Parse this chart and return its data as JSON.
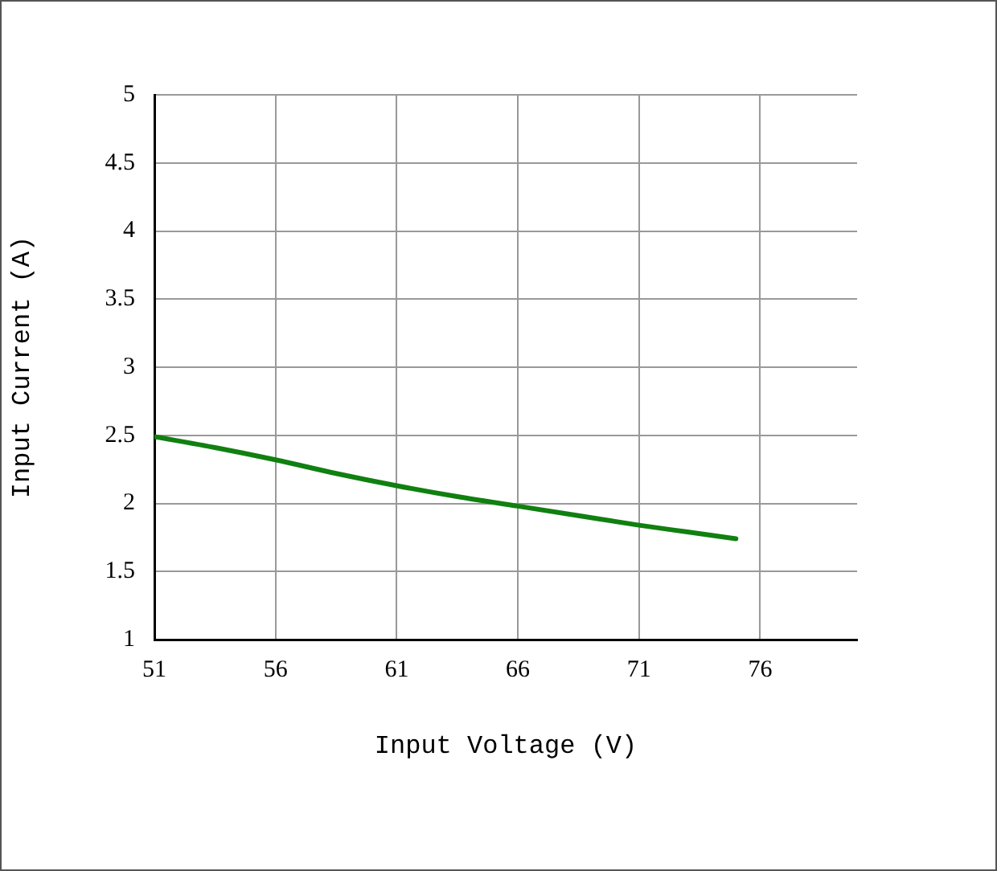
{
  "chart_data": {
    "type": "line",
    "xlabel": "Input Voltage (V)",
    "ylabel": "Input Current (A)",
    "x": [
      51,
      53.5,
      56,
      58.5,
      61,
      63.5,
      66,
      68.5,
      71,
      73,
      75
    ],
    "series": [
      {
        "color": "#108010",
        "values": [
          2.49,
          2.41,
          2.32,
          2.22,
          2.13,
          2.05,
          1.98,
          1.91,
          1.84,
          1.79,
          1.74
        ]
      }
    ],
    "xlim": [
      51,
      80
    ],
    "xticks": [
      51,
      56,
      61,
      66,
      71,
      76
    ],
    "ylim": [
      1,
      5
    ],
    "yticks": [
      1,
      1.5,
      2,
      2.5,
      3,
      3.5,
      4,
      4.5,
      5
    ],
    "grid": true,
    "legend": false,
    "marker": "none",
    "line_style": "solid"
  }
}
